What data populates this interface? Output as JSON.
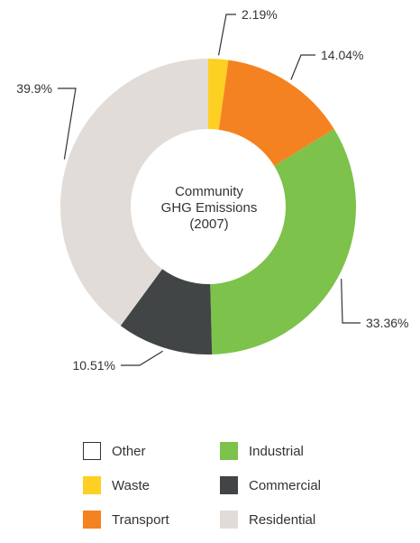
{
  "chart_data": {
    "type": "pie",
    "variant": "donut",
    "center_label": [
      "Community",
      "GHG Emissions",
      "(2007)"
    ],
    "start_angle": "top, clockwise",
    "slices": [
      {
        "name": "Other",
        "value": 0.0,
        "label": "",
        "color": "#ffffff"
      },
      {
        "name": "Waste",
        "value": 2.19,
        "label": "2.19%",
        "color": "#FDD023"
      },
      {
        "name": "Transport",
        "value": 14.04,
        "label": "14.04%",
        "color": "#F58220"
      },
      {
        "name": "Industrial",
        "value": 33.36,
        "label": "33.36%",
        "color": "#7DC24B"
      },
      {
        "name": "Commercial",
        "value": 10.51,
        "label": "10.51%",
        "color": "#414546"
      },
      {
        "name": "Residential",
        "value": 39.9,
        "label": "39.9%",
        "color": "#E2DCD8"
      }
    ],
    "legend": {
      "placement": "bottom",
      "items": [
        {
          "name": "Other",
          "color": "#ffffff",
          "outlined": true
        },
        {
          "name": "Industrial",
          "color": "#7DC24B"
        },
        {
          "name": "Waste",
          "color": "#FDD023"
        },
        {
          "name": "Commercial",
          "color": "#414546"
        },
        {
          "name": "Transport",
          "color": "#F58220"
        },
        {
          "name": "Residential",
          "color": "#E2DCD8"
        }
      ]
    }
  }
}
